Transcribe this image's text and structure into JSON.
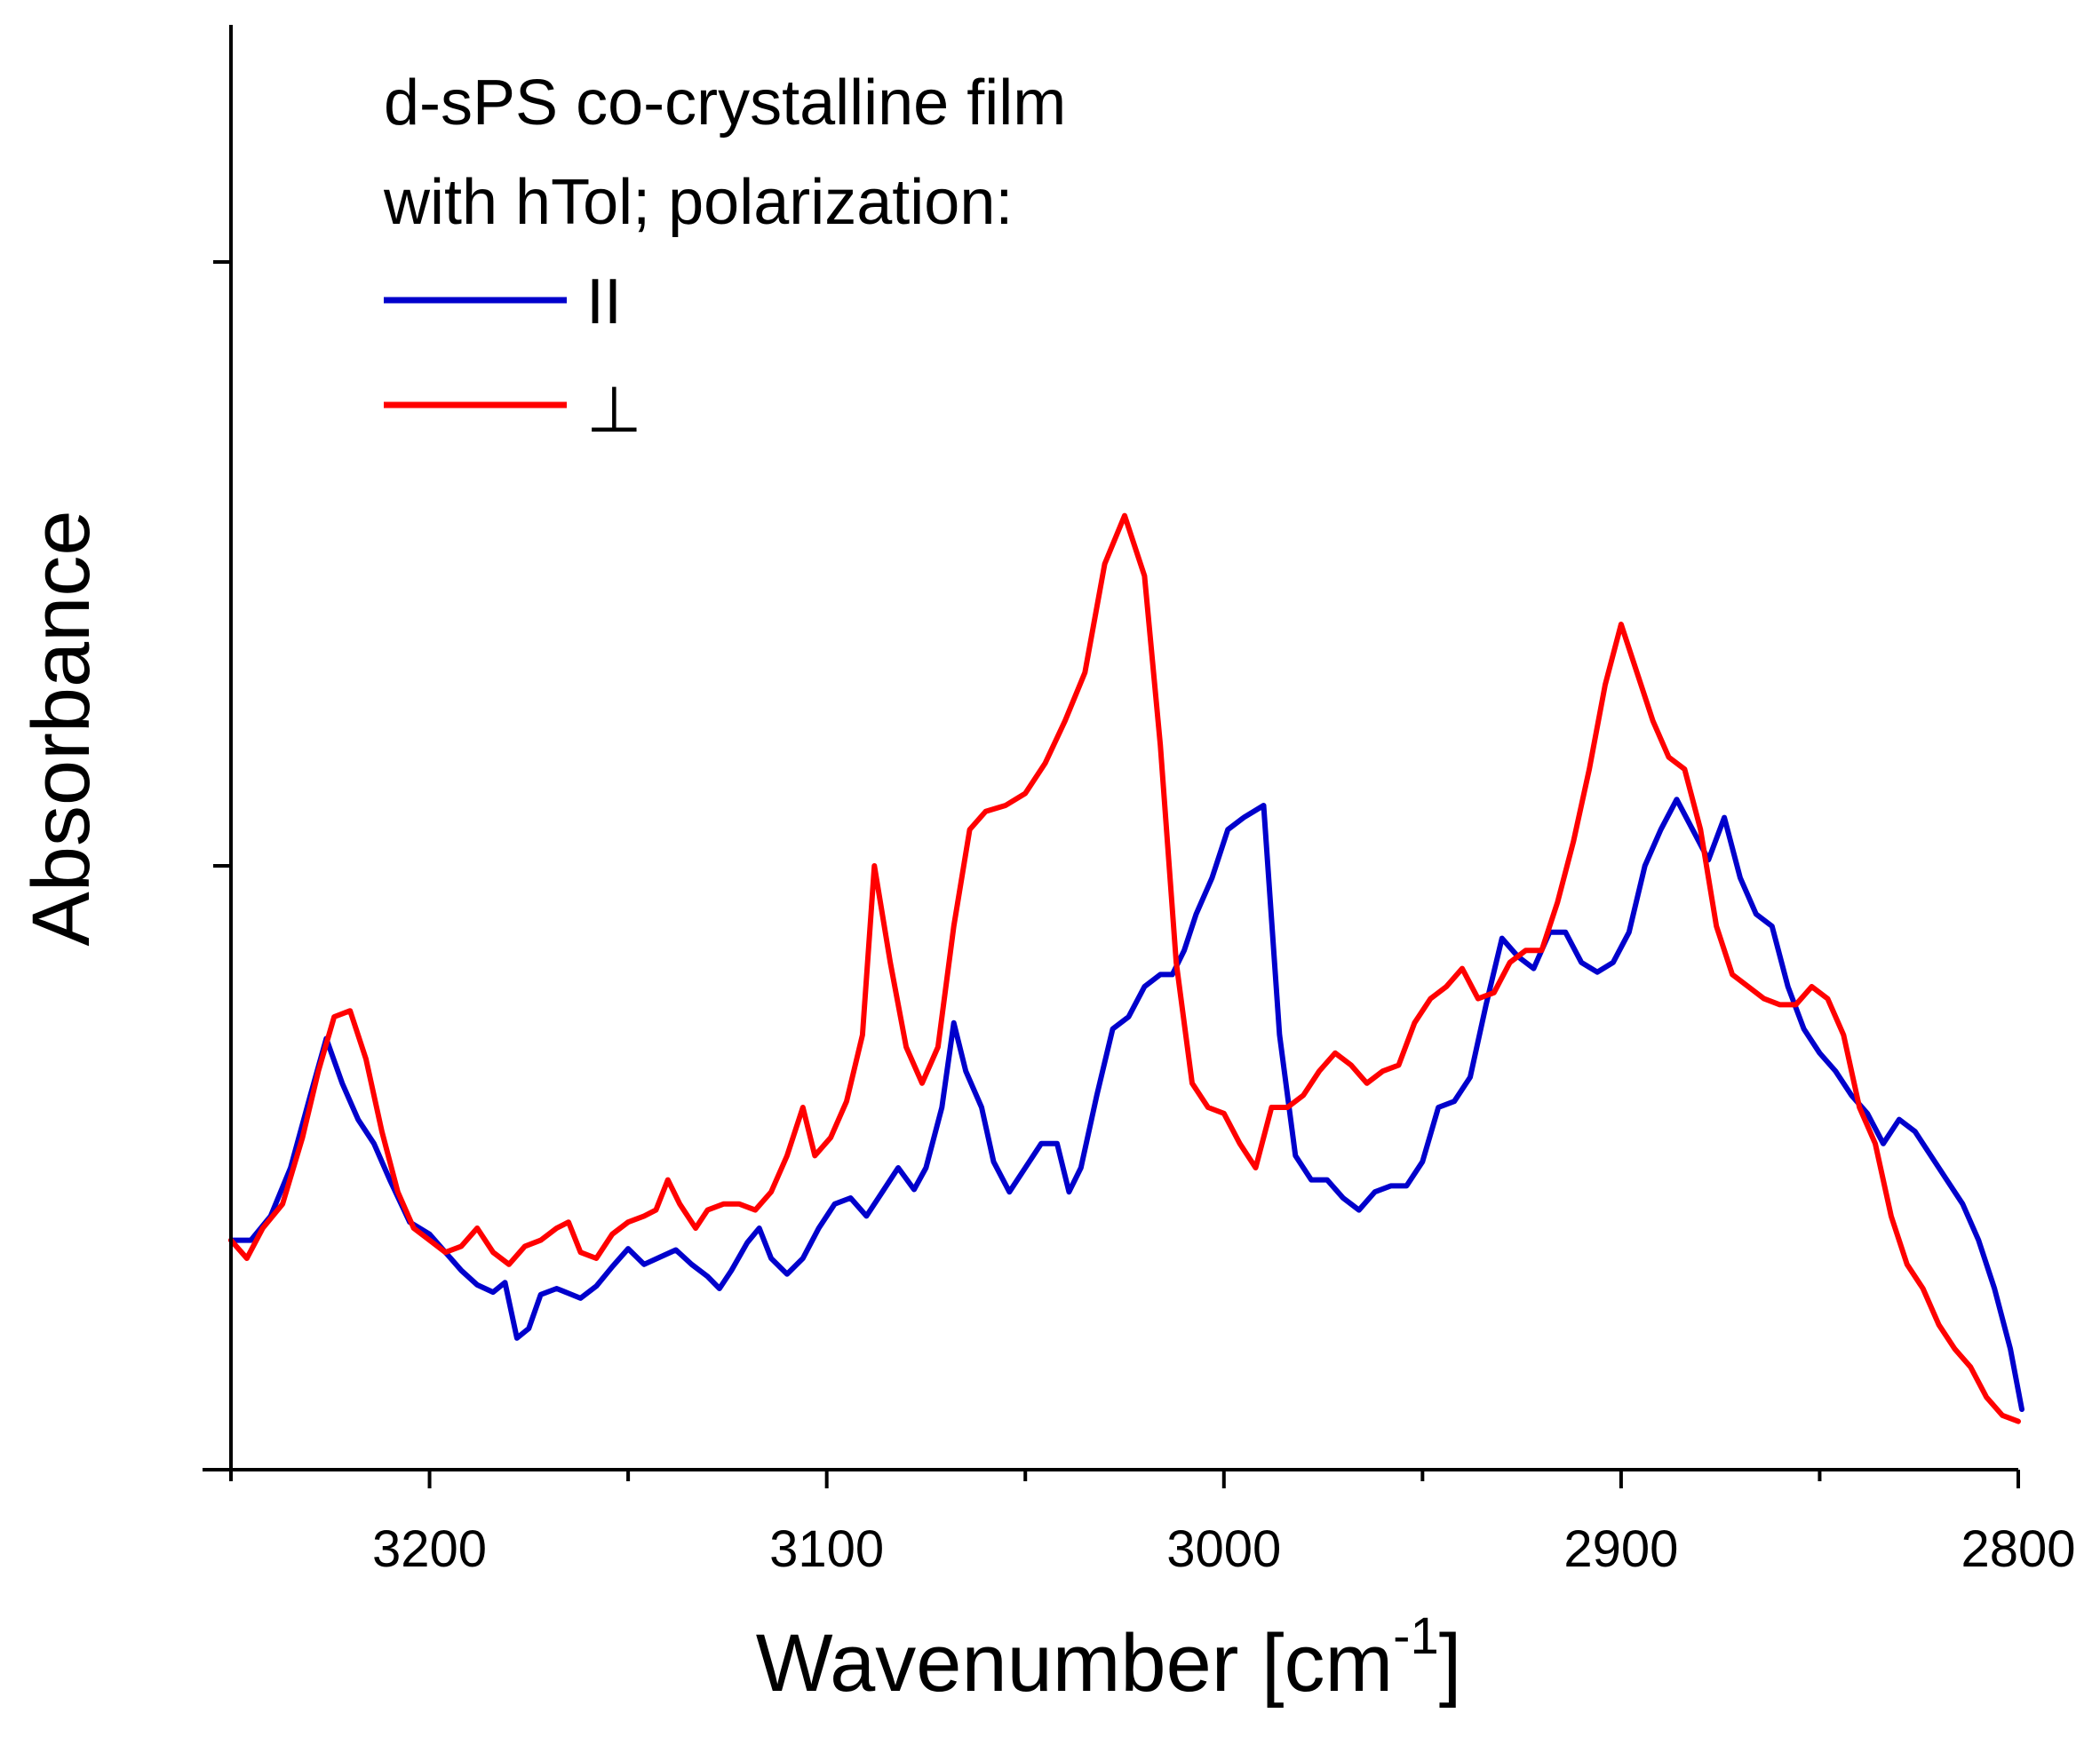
{
  "chart_data": {
    "type": "line",
    "title": "",
    "xlabel": "Wavenumber [cm",
    "xlabel_superscript": "-1",
    "xlabel_suffix": "]",
    "ylabel": "Absorbance",
    "xlim": [
      3250,
      2800
    ],
    "x_reversed": true,
    "ylim": [
      0,
      1
    ],
    "xticks": [
      3200,
      3100,
      3000,
      2900,
      2800
    ],
    "xtick_labels": [
      "3200",
      "3100",
      "3000",
      "2900",
      "2800"
    ],
    "x_minor_ticks": [
      3250,
      3150,
      3050,
      2950,
      2850
    ],
    "yticks": [
      0.5,
      1.0
    ],
    "yticks_labeled": false,
    "grid": false,
    "legend": {
      "placement": "top-left",
      "title_line1": "d-sPS co-crystalline film",
      "title_line2": "with hTol; polarization:"
    },
    "series": [
      {
        "name": "II",
        "color": "#0000cc",
        "points": [
          [
            3250,
            0.19
          ],
          [
            3245,
            0.19
          ],
          [
            3240,
            0.21
          ],
          [
            3235,
            0.25
          ],
          [
            3230,
            0.31
          ],
          [
            3226,
            0.357
          ],
          [
            3222,
            0.32
          ],
          [
            3218,
            0.29
          ],
          [
            3214,
            0.27
          ],
          [
            3210,
            0.24
          ],
          [
            3205,
            0.205
          ],
          [
            3200,
            0.195
          ],
          [
            3196,
            0.18
          ],
          [
            3192,
            0.165
          ],
          [
            3188,
            0.153
          ],
          [
            3184,
            0.147
          ],
          [
            3181,
            0.155
          ],
          [
            3178,
            0.109
          ],
          [
            3175,
            0.117
          ],
          [
            3172,
            0.145
          ],
          [
            3168,
            0.15
          ],
          [
            3165,
            0.146
          ],
          [
            3162,
            0.142
          ],
          [
            3158,
            0.152
          ],
          [
            3154,
            0.168
          ],
          [
            3150,
            0.183
          ],
          [
            3146,
            0.17
          ],
          [
            3142,
            0.176
          ],
          [
            3138,
            0.182
          ],
          [
            3134,
            0.17
          ],
          [
            3130,
            0.16
          ],
          [
            3127,
            0.15
          ],
          [
            3124,
            0.165
          ],
          [
            3120,
            0.188
          ],
          [
            3117,
            0.2
          ],
          [
            3114,
            0.175
          ],
          [
            3110,
            0.162
          ],
          [
            3106,
            0.175
          ],
          [
            3102,
            0.2
          ],
          [
            3098,
            0.22
          ],
          [
            3094,
            0.225
          ],
          [
            3090,
            0.21
          ],
          [
            3086,
            0.23
          ],
          [
            3082,
            0.25
          ],
          [
            3078,
            0.232
          ],
          [
            3075,
            0.25
          ],
          [
            3071,
            0.3
          ],
          [
            3068,
            0.37
          ],
          [
            3065,
            0.33
          ],
          [
            3061,
            0.3
          ],
          [
            3058,
            0.255
          ],
          [
            3054,
            0.23
          ],
          [
            3050,
            0.25
          ],
          [
            3046,
            0.27
          ],
          [
            3042,
            0.27
          ],
          [
            3039,
            0.23
          ],
          [
            3036,
            0.25
          ],
          [
            3032,
            0.31
          ],
          [
            3028,
            0.365
          ],
          [
            3024,
            0.375
          ],
          [
            3020,
            0.4
          ],
          [
            3016,
            0.41
          ],
          [
            3013,
            0.41
          ],
          [
            3010,
            0.43
          ],
          [
            3007,
            0.46
          ],
          [
            3003,
            0.49
          ],
          [
            2999,
            0.53
          ],
          [
            2995,
            0.54
          ],
          [
            2990,
            0.55
          ],
          [
            2986,
            0.36
          ],
          [
            2982,
            0.26
          ],
          [
            2978,
            0.24
          ],
          [
            2974,
            0.24
          ],
          [
            2970,
            0.225
          ],
          [
            2966,
            0.215
          ],
          [
            2962,
            0.23
          ],
          [
            2958,
            0.235
          ],
          [
            2954,
            0.235
          ],
          [
            2950,
            0.255
          ],
          [
            2946,
            0.3
          ],
          [
            2942,
            0.305
          ],
          [
            2938,
            0.325
          ],
          [
            2934,
            0.385
          ],
          [
            2930,
            0.44
          ],
          [
            2926,
            0.425
          ],
          [
            2922,
            0.415
          ],
          [
            2918,
            0.445
          ],
          [
            2914,
            0.445
          ],
          [
            2910,
            0.42
          ],
          [
            2906,
            0.412
          ],
          [
            2902,
            0.42
          ],
          [
            2898,
            0.445
          ],
          [
            2894,
            0.5
          ],
          [
            2890,
            0.53
          ],
          [
            2886,
            0.555
          ],
          [
            2882,
            0.53
          ],
          [
            2878,
            0.505
          ],
          [
            2874,
            0.54
          ],
          [
            2870,
            0.49
          ],
          [
            2866,
            0.46
          ],
          [
            2862,
            0.45
          ],
          [
            2858,
            0.4
          ],
          [
            2854,
            0.365
          ],
          [
            2850,
            0.345
          ],
          [
            2846,
            0.33
          ],
          [
            2842,
            0.31
          ],
          [
            2838,
            0.295
          ],
          [
            2834,
            0.27
          ],
          [
            2830,
            0.29
          ],
          [
            2826,
            0.28
          ],
          [
            2822,
            0.26
          ],
          [
            2818,
            0.24
          ],
          [
            2814,
            0.22
          ],
          [
            2810,
            0.19
          ],
          [
            2806,
            0.15
          ],
          [
            2802,
            0.1
          ],
          [
            2798,
            0.05
          ]
        ]
      },
      {
        "name": "⊥",
        "color": "#ff0000",
        "points": [
          [
            3250,
            0.19
          ],
          [
            3246,
            0.175
          ],
          [
            3242,
            0.2
          ],
          [
            3237,
            0.22
          ],
          [
            3232,
            0.275
          ],
          [
            3228,
            0.33
          ],
          [
            3224,
            0.375
          ],
          [
            3220,
            0.38
          ],
          [
            3216,
            0.34
          ],
          [
            3212,
            0.28
          ],
          [
            3208,
            0.23
          ],
          [
            3204,
            0.2
          ],
          [
            3200,
            0.19
          ],
          [
            3196,
            0.18
          ],
          [
            3192,
            0.185
          ],
          [
            3188,
            0.2
          ],
          [
            3184,
            0.18
          ],
          [
            3180,
            0.17
          ],
          [
            3176,
            0.185
          ],
          [
            3172,
            0.19
          ],
          [
            3168,
            0.2
          ],
          [
            3165,
            0.205
          ],
          [
            3162,
            0.18
          ],
          [
            3158,
            0.175
          ],
          [
            3154,
            0.195
          ],
          [
            3150,
            0.205
          ],
          [
            3146,
            0.21
          ],
          [
            3143,
            0.215
          ],
          [
            3140,
            0.24
          ],
          [
            3137,
            0.22
          ],
          [
            3133,
            0.2
          ],
          [
            3130,
            0.215
          ],
          [
            3126,
            0.22
          ],
          [
            3122,
            0.22
          ],
          [
            3118,
            0.215
          ],
          [
            3114,
            0.23
          ],
          [
            3110,
            0.26
          ],
          [
            3106,
            0.3
          ],
          [
            3103,
            0.26
          ],
          [
            3099,
            0.275
          ],
          [
            3095,
            0.305
          ],
          [
            3091,
            0.36
          ],
          [
            3088,
            0.5
          ],
          [
            3084,
            0.42
          ],
          [
            3080,
            0.35
          ],
          [
            3076,
            0.32
          ],
          [
            3072,
            0.35
          ],
          [
            3068,
            0.45
          ],
          [
            3064,
            0.53
          ],
          [
            3060,
            0.545
          ],
          [
            3055,
            0.55
          ],
          [
            3050,
            0.56
          ],
          [
            3045,
            0.585
          ],
          [
            3040,
            0.62
          ],
          [
            3035,
            0.66
          ],
          [
            3030,
            0.75
          ],
          [
            3025,
            0.79
          ],
          [
            3020,
            0.74
          ],
          [
            3016,
            0.6
          ],
          [
            3012,
            0.42
          ],
          [
            3008,
            0.32
          ],
          [
            3004,
            0.3
          ],
          [
            3000,
            0.295
          ],
          [
            2996,
            0.27
          ],
          [
            2992,
            0.25
          ],
          [
            2988,
            0.3
          ],
          [
            2984,
            0.3
          ],
          [
            2980,
            0.31
          ],
          [
            2976,
            0.33
          ],
          [
            2972,
            0.345
          ],
          [
            2968,
            0.335
          ],
          [
            2964,
            0.32
          ],
          [
            2960,
            0.33
          ],
          [
            2956,
            0.335
          ],
          [
            2952,
            0.37
          ],
          [
            2948,
            0.39
          ],
          [
            2944,
            0.4
          ],
          [
            2940,
            0.415
          ],
          [
            2936,
            0.39
          ],
          [
            2932,
            0.395
          ],
          [
            2928,
            0.42
          ],
          [
            2924,
            0.43
          ],
          [
            2920,
            0.43
          ],
          [
            2916,
            0.47
          ],
          [
            2912,
            0.52
          ],
          [
            2908,
            0.58
          ],
          [
            2904,
            0.65
          ],
          [
            2900,
            0.7
          ],
          [
            2896,
            0.66
          ],
          [
            2892,
            0.62
          ],
          [
            2888,
            0.59
          ],
          [
            2884,
            0.58
          ],
          [
            2880,
            0.53
          ],
          [
            2876,
            0.45
          ],
          [
            2872,
            0.41
          ],
          [
            2868,
            0.4
          ],
          [
            2864,
            0.39
          ],
          [
            2860,
            0.385
          ],
          [
            2856,
            0.385
          ],
          [
            2852,
            0.4
          ],
          [
            2848,
            0.39
          ],
          [
            2844,
            0.36
          ],
          [
            2840,
            0.3
          ],
          [
            2836,
            0.27
          ],
          [
            2832,
            0.21
          ],
          [
            2828,
            0.17
          ],
          [
            2824,
            0.15
          ],
          [
            2820,
            0.12
          ],
          [
            2816,
            0.1
          ],
          [
            2812,
            0.085
          ],
          [
            2808,
            0.06
          ],
          [
            2804,
            0.045
          ],
          [
            2800,
            0.04
          ]
        ]
      }
    ]
  }
}
